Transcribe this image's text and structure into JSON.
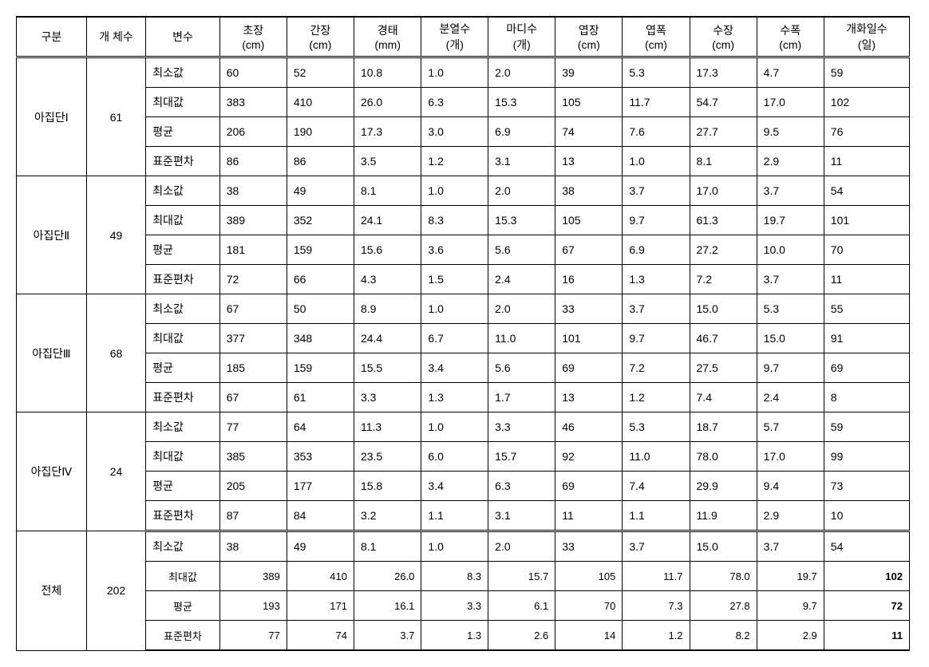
{
  "headers": {
    "gubun": "구분",
    "count": "개 체수",
    "var": "변수",
    "chojang": "초장\n(cm)",
    "ganjang": "간장\n(cm)",
    "gyeongtae": "경태\n(mm)",
    "bunyeol": "분열수\n(개)",
    "madi": "마디수\n(개)",
    "yeopjang": "엽장\n(cm)",
    "yeoppok": "엽폭\n(cm)",
    "sujang": "수장\n(cm)",
    "supok": "수폭\n(cm)",
    "gaehwa": "개화일수\n(일)"
  },
  "var_labels": {
    "min": "최소값",
    "max": "최대값",
    "mean": "평균",
    "std": "표준편차"
  },
  "groups": [
    {
      "name": "아집단Ⅰ",
      "count": "61",
      "rows": [
        [
          "60",
          "52",
          "10.8",
          "1.0",
          "2.0",
          "39",
          "5.3",
          "17.3",
          "4.7",
          "59"
        ],
        [
          "383",
          "410",
          "26.0",
          "6.3",
          "15.3",
          "105",
          "11.7",
          "54.7",
          "17.0",
          "102"
        ],
        [
          "206",
          "190",
          "17.3",
          "3.0",
          "6.9",
          "74",
          "7.6",
          "27.7",
          "9.5",
          "76"
        ],
        [
          "86",
          "86",
          "3.5",
          "1.2",
          "3.1",
          "13",
          "1.0",
          "8.1",
          "2.9",
          "11"
        ]
      ]
    },
    {
      "name": "아집단Ⅱ",
      "count": "49",
      "rows": [
        [
          "38",
          "49",
          "8.1",
          "1.0",
          "2.0",
          "38",
          "3.7",
          "17.0",
          "3.7",
          "54"
        ],
        [
          "389",
          "352",
          "24.1",
          "8.3",
          "15.3",
          "105",
          "9.7",
          "61.3",
          "19.7",
          "101"
        ],
        [
          "181",
          "159",
          "15.6",
          "3.6",
          "5.6",
          "67",
          "6.9",
          "27.2",
          "10.0",
          "70"
        ],
        [
          "72",
          "66",
          "4.3",
          "1.5",
          "2.4",
          "16",
          "1.3",
          "7.2",
          "3.7",
          "11"
        ]
      ]
    },
    {
      "name": "아집단Ⅲ",
      "count": "68",
      "rows": [
        [
          "67",
          "50",
          "8.9",
          "1.0",
          "2.0",
          "33",
          "3.7",
          "15.0",
          "5.3",
          "55"
        ],
        [
          "377",
          "348",
          "24.4",
          "6.7",
          "11.0",
          "101",
          "9.7",
          "46.7",
          "15.0",
          "91"
        ],
        [
          "185",
          "159",
          "15.5",
          "3.4",
          "5.6",
          "69",
          "7.2",
          "27.5",
          "9.7",
          "69"
        ],
        [
          "67",
          "61",
          "3.3",
          "1.3",
          "1.7",
          "13",
          "1.2",
          "7.4",
          "2.4",
          "8"
        ]
      ]
    },
    {
      "name": "아집단Ⅳ",
      "count": "24",
      "rows": [
        [
          "77",
          "64",
          "11.3",
          "1.0",
          "3.3",
          "46",
          "5.3",
          "18.7",
          "5.7",
          "59"
        ],
        [
          "385",
          "353",
          "23.5",
          "6.0",
          "15.7",
          "92",
          "11.0",
          "78.0",
          "17.0",
          "99"
        ],
        [
          "205",
          "177",
          "15.8",
          "3.4",
          "6.3",
          "69",
          "7.4",
          "29.9",
          "9.4",
          "73"
        ],
        [
          "87",
          "84",
          "3.2",
          "1.1",
          "3.1",
          "11",
          "1.1",
          "11.9",
          "2.9",
          "10"
        ]
      ]
    },
    {
      "name": "전체",
      "count": "202",
      "rows": [
        [
          "38",
          "49",
          "8.1",
          "1.0",
          "2.0",
          "33",
          "3.7",
          "15.0",
          "3.7",
          "54"
        ],
        [
          "389",
          "410",
          "26.0",
          "8.3",
          "15.7",
          "105",
          "11.7",
          "78.0",
          "19.7",
          "102"
        ],
        [
          "193",
          "171",
          "16.1",
          "3.3",
          "6.1",
          "70",
          "7.3",
          "27.8",
          "9.7",
          "72"
        ],
        [
          "77",
          "74",
          "3.7",
          "1.3",
          "2.6",
          "14",
          "1.2",
          "8.2",
          "2.9",
          "11"
        ]
      ],
      "rightAlign": true,
      "lastBold": true
    }
  ]
}
